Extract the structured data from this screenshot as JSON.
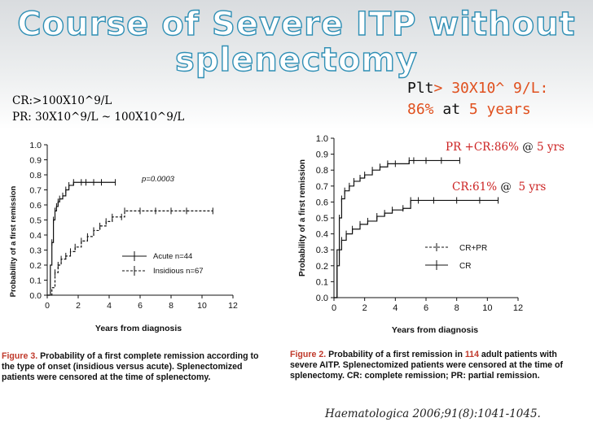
{
  "slide": {
    "title_line1": "Course of Severe ITP without",
    "title_line2": "splenectomy",
    "plt_prefix": "Plt",
    "plt_value": "> 30X10^ 9/L:",
    "plt_pct": "86%",
    "plt_at": " at ",
    "plt_years": "5 years",
    "cr_def": "CR:>100X10^9/L",
    "pr_def": "PR: 30X10^9/L ~ 100X10^9/L",
    "citation": "Haematologica 2006;91(8):1041-1045."
  },
  "colors": {
    "title_outline": "#2f8fb5",
    "accent": "#e0501e",
    "caption_label": "#c0392b",
    "annotation": "#cc2222",
    "text": "#111111"
  },
  "chart_data": [
    {
      "type": "line",
      "xlabel": "Years from diagnosis",
      "ylabel": "Probability of a first remission",
      "xlim": [
        0,
        12
      ],
      "ylim": [
        0,
        1
      ],
      "xticks": [
        "0",
        "2",
        "4",
        "6",
        "8",
        "10",
        "12"
      ],
      "yticks": [
        "0.0",
        "0.1",
        "0.2",
        "0.3",
        "0.4",
        "0.5",
        "0.6",
        "0.7",
        "0.8",
        "0.9",
        "1.0"
      ],
      "pvalue": "p=0.0003",
      "series": [
        {
          "name": "Acute n=44",
          "style": "solid",
          "x": [
            0,
            0.2,
            0.3,
            0.4,
            0.5,
            0.6,
            0.7,
            0.8,
            1.0,
            1.2,
            1.4,
            1.7,
            2.2,
            2.5,
            3.0,
            3.5,
            4.4
          ],
          "y": [
            0,
            0.2,
            0.35,
            0.5,
            0.56,
            0.59,
            0.62,
            0.64,
            0.66,
            0.7,
            0.73,
            0.75,
            0.75,
            0.75,
            0.75,
            0.75,
            0.75
          ]
        },
        {
          "name": "Insidious n=67",
          "style": "dashed",
          "x": [
            0,
            0.3,
            0.5,
            0.7,
            0.9,
            1.2,
            1.5,
            1.8,
            2.2,
            2.6,
            3.0,
            3.4,
            3.8,
            4.2,
            4.8,
            5.0,
            6.0,
            7.0,
            8.0,
            9.0,
            10.7
          ],
          "y": [
            0,
            0.05,
            0.15,
            0.2,
            0.24,
            0.26,
            0.29,
            0.32,
            0.36,
            0.39,
            0.43,
            0.46,
            0.49,
            0.52,
            0.52,
            0.56,
            0.56,
            0.56,
            0.56,
            0.56,
            0.56
          ]
        }
      ],
      "caption_label": "Figure 3.",
      "caption": " Probability of a first complete remission according to the type of onset (insidious versus acute). Splenectomized patients were censored at the time of splenectomy."
    },
    {
      "type": "line",
      "xlabel": "Years from diagnosis",
      "ylabel": "Probability of a first remission",
      "xlim": [
        0,
        12
      ],
      "ylim": [
        0,
        1
      ],
      "xticks": [
        "0",
        "2",
        "4",
        "6",
        "8",
        "10",
        "12"
      ],
      "yticks": [
        "0.0",
        "0.1",
        "0.2",
        "0.3",
        "0.4",
        "0.5",
        "0.6",
        "0.7",
        "0.8",
        "0.9",
        "1.0"
      ],
      "series": [
        {
          "name": "CR+PR",
          "style": "solid",
          "x": [
            0,
            0.2,
            0.35,
            0.5,
            0.7,
            1.0,
            1.3,
            1.7,
            2.0,
            2.5,
            3.0,
            3.5,
            4.0,
            4.9,
            5.2,
            6.0,
            7.0,
            8.2
          ],
          "y": [
            0,
            0.3,
            0.5,
            0.62,
            0.67,
            0.7,
            0.73,
            0.75,
            0.77,
            0.8,
            0.82,
            0.84,
            0.84,
            0.86,
            0.86,
            0.86,
            0.86,
            0.86
          ]
        },
        {
          "name": "CR",
          "style": "solid",
          "x": [
            0,
            0.2,
            0.35,
            0.5,
            0.8,
            1.2,
            1.7,
            2.2,
            2.8,
            3.3,
            3.8,
            4.5,
            5.0,
            5.5,
            6.5,
            8.0,
            9.5,
            10.7
          ],
          "y": [
            0,
            0.2,
            0.3,
            0.36,
            0.4,
            0.43,
            0.46,
            0.48,
            0.51,
            0.53,
            0.55,
            0.56,
            0.61,
            0.61,
            0.61,
            0.61,
            0.61,
            0.61
          ]
        }
      ],
      "annotations": [
        {
          "red": "PR +CR:86%",
          "sep": " @ ",
          "years": "5 yrs"
        },
        {
          "red": "CR:61%",
          "sep": " @ ",
          "years": " 5 yrs"
        }
      ],
      "caption_label": "Figure 2.",
      "caption_pre": " Probability of a first remission in ",
      "caption_n": "114",
      "caption_post": " adult patients with severe AITP. Splenectomized patients were censored at the time of splenectomy. CR: complete remission; PR: partial remission."
    }
  ]
}
